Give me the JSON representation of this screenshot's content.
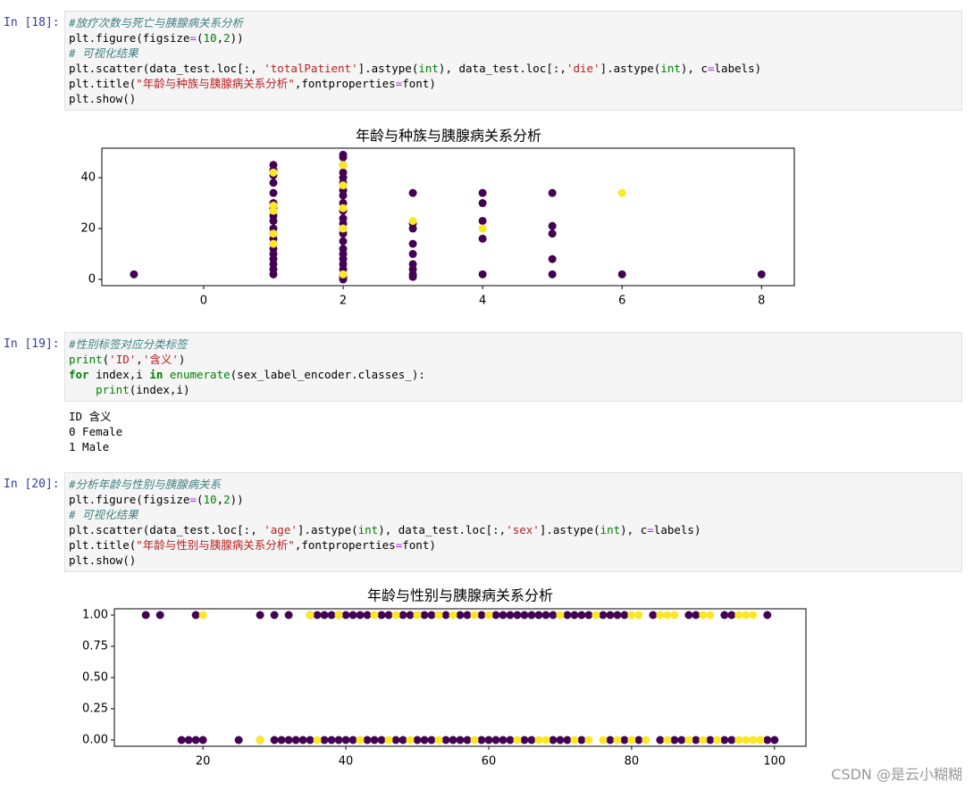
{
  "cells": [
    {
      "prompt": "In [18]:",
      "code": [
        "#放疗次数与死亡与胰腺病关系分析",
        "plt.figure(figsize=(10,2))",
        "# 可视化结果",
        "plt.scatter(data_test.loc[:, 'totalPatient'].astype(int), data_test.loc[:,'die'].astype(int), c=labels)",
        "plt.title(\"年龄与种族与胰腺病关系分析\",fontproperties=font)",
        "plt.show()"
      ]
    },
    {
      "prompt": "In [19]:",
      "code": [
        "#性别标签对应分类标签",
        "print('ID','含义')",
        "for index,i in enumerate(sex_label_encoder.classes_):",
        "    print(index,i)"
      ],
      "output": [
        "ID 含义",
        "0 Female",
        "1 Male"
      ]
    },
    {
      "prompt": "In [20]:",
      "code": [
        "#分析年龄与性别与胰腺病关系",
        "plt.figure(figsize=(10,2))",
        "# 可视化结果",
        "plt.scatter(data_test.loc[:, 'age'].astype(int), data_test.loc[:,'sex'].astype(int), c=labels)",
        "plt.title(\"年龄与性别与胰腺病关系分析\",fontproperties=font)",
        "plt.show()"
      ]
    }
  ],
  "chart_data": [
    {
      "type": "scatter",
      "title": "年龄与种族与胰腺病关系分析",
      "xlim": [
        -1.46,
        8.47
      ],
      "xticks": [
        0,
        2,
        4,
        6,
        8
      ],
      "ylim": [
        -2.45,
        51.6
      ],
      "yticks": [
        0,
        20,
        40
      ],
      "series": [
        {
          "color": "#440154",
          "x": [
            -1,
            1,
            1,
            1,
            1,
            1,
            1,
            1,
            1,
            1,
            1,
            1,
            1,
            1,
            1,
            1,
            1,
            1,
            1,
            1,
            2,
            2,
            2,
            2,
            2,
            2,
            2,
            2,
            2,
            2,
            2,
            2,
            2,
            2,
            2,
            2,
            2,
            2,
            2,
            2,
            2,
            2,
            2,
            3,
            3,
            3,
            3,
            3,
            3,
            3,
            3,
            3,
            4,
            4,
            4,
            4,
            4,
            5,
            5,
            5,
            5,
            5,
            6,
            8
          ],
          "values": [
            2,
            2,
            4,
            6,
            8,
            10,
            12,
            14,
            16,
            18,
            20,
            23,
            25,
            28,
            30,
            34,
            38,
            41,
            43,
            45,
            0,
            1,
            2,
            4,
            6,
            8,
            10,
            12,
            15,
            18,
            20,
            22,
            24,
            27,
            30,
            33,
            35,
            38,
            40,
            42,
            45,
            48,
            49,
            1,
            2,
            4,
            6,
            10,
            14,
            20,
            22,
            34,
            2,
            16,
            23,
            30,
            34,
            2,
            8,
            18,
            21,
            34,
            2,
            2
          ]
        },
        {
          "color": "#fde725",
          "x": [
            1,
            1,
            1,
            1,
            1,
            2,
            2,
            2,
            2,
            2,
            3,
            4,
            6
          ],
          "values": [
            14,
            18,
            27,
            29,
            42,
            2,
            20,
            28,
            37,
            45,
            23,
            20,
            34
          ]
        }
      ]
    },
    {
      "type": "scatter",
      "title": "年龄与性别与胰腺病关系分析",
      "xlim": [
        7.6,
        104.4
      ],
      "xticks": [
        20,
        40,
        60,
        80,
        100
      ],
      "ylim": [
        -0.05,
        1.05
      ],
      "yticks": [
        {
          "value": 0,
          "label": "0.00"
        },
        {
          "value": 0.25,
          "label": "0.25"
        },
        {
          "value": 0.5,
          "label": "0.50"
        },
        {
          "value": 0.75,
          "label": "0.75"
        },
        {
          "value": 1,
          "label": "1.00"
        }
      ],
      "series": [
        {
          "color": "#440154",
          "x": [
            12,
            14,
            19,
            28,
            30,
            32,
            35,
            36,
            37,
            38,
            39,
            40,
            41,
            42,
            43,
            45,
            46,
            48,
            49,
            51,
            52,
            54,
            56,
            57,
            59,
            61,
            62,
            63,
            64,
            65,
            66,
            67,
            68,
            69,
            71,
            72,
            73,
            74,
            76,
            77,
            78,
            79,
            83,
            88,
            89,
            93,
            94,
            99
          ],
          "values": [
            1,
            1,
            1,
            1,
            1,
            1,
            1,
            1,
            1,
            1,
            1,
            1,
            1,
            1,
            1,
            1,
            1,
            1,
            1,
            1,
            1,
            1,
            1,
            1,
            1,
            1,
            1,
            1,
            1,
            1,
            1,
            1,
            1,
            1,
            1,
            1,
            1,
            1,
            1,
            1,
            1,
            1,
            1,
            1,
            1,
            1,
            1,
            1
          ]
        },
        {
          "color": "#440154",
          "x": [
            17,
            18,
            19,
            20,
            25,
            28,
            30,
            31,
            32,
            33,
            34,
            35,
            37,
            38,
            39,
            40,
            41,
            43,
            44,
            45,
            47,
            48,
            50,
            51,
            52,
            54,
            55,
            56,
            57,
            59,
            60,
            61,
            62,
            63,
            65,
            66,
            69,
            70,
            71,
            73,
            77,
            79,
            81,
            84,
            86,
            87,
            89,
            91,
            93,
            94,
            99,
            100
          ],
          "values": [
            0,
            0,
            0,
            0,
            0,
            0,
            0,
            0,
            0,
            0,
            0,
            0,
            0,
            0,
            0,
            0,
            0,
            0,
            0,
            0,
            0,
            0,
            0,
            0,
            0,
            0,
            0,
            0,
            0,
            0,
            0,
            0,
            0,
            0,
            0,
            0,
            0,
            0,
            0,
            0,
            0,
            0,
            0,
            0,
            0,
            0,
            0,
            0,
            0,
            0,
            0,
            0
          ]
        },
        {
          "color": "#fde725",
          "x": [
            20,
            35,
            39,
            44,
            47,
            50,
            53,
            55,
            58,
            60,
            70,
            75,
            80,
            81,
            84,
            85,
            86,
            90,
            91,
            95,
            96,
            97
          ],
          "values": [
            1,
            1,
            1,
            1,
            1,
            1,
            1,
            1,
            1,
            1,
            1,
            1,
            1,
            1,
            1,
            1,
            1,
            1,
            1,
            1,
            1,
            1
          ]
        },
        {
          "color": "#fde725",
          "x": [
            28,
            36,
            42,
            46,
            49,
            53,
            58,
            64,
            67,
            68,
            72,
            74,
            76,
            78,
            80,
            82,
            85,
            88,
            90,
            92,
            95,
            96,
            97,
            98
          ],
          "values": [
            0,
            0,
            0,
            0,
            0,
            0,
            0,
            0,
            0,
            0,
            0,
            0,
            0,
            0,
            0,
            0,
            0,
            0,
            0,
            0,
            0,
            0,
            0,
            0
          ]
        }
      ]
    }
  ],
  "watermark": "CSDN @是云小糊糊"
}
